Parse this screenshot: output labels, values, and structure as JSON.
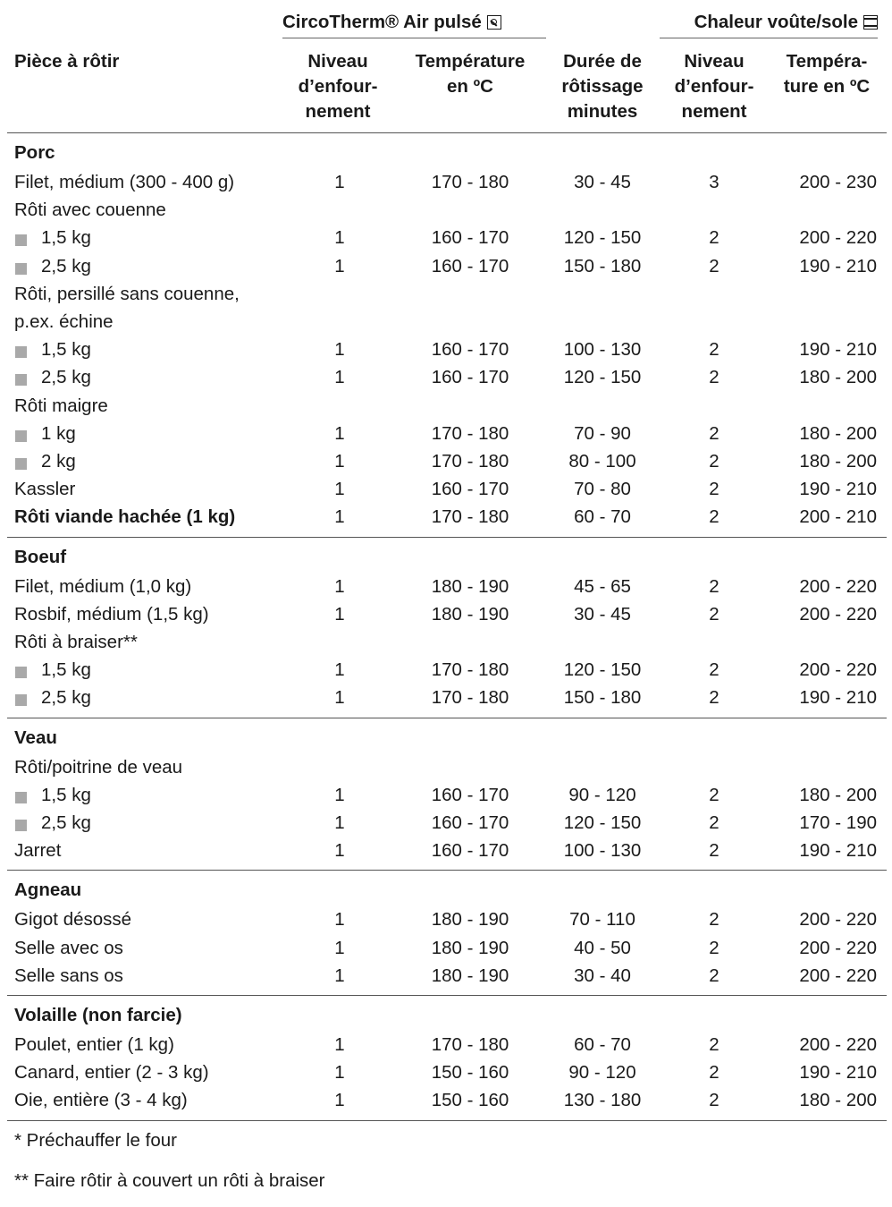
{
  "header": {
    "circotherm_label": "CircoTherm® Air pulsé",
    "circotherm_icon": "fan-symbol-icon",
    "voute_label": "Chaleur voûte/sole",
    "voute_icon": "top-bottom-heat-icon",
    "col_piece": "Pièce à rôtir",
    "col_niveau_ct": [
      "Niveau",
      "d’enfour-",
      "nement"
    ],
    "col_temp_ct": [
      "Température",
      "en ºC"
    ],
    "col_duree": [
      "Durée de",
      "rôtissage",
      "minutes"
    ],
    "col_niveau_hv": [
      "Niveau",
      "d’enfour-",
      "nement"
    ],
    "col_temp_hv": [
      "Tempéra-",
      "ture en ºC"
    ]
  },
  "sections": [
    {
      "title": "Porc",
      "rows": [
        {
          "label": "Filet, médium (300 - 400 g)",
          "v": [
            "1",
            "170 - 180",
            "30 - 45",
            "3",
            "200 - 230"
          ]
        },
        {
          "label": "Rôti avec couenne"
        },
        {
          "label": "1,5 kg",
          "bullet": true,
          "v": [
            "1",
            "160 - 170",
            "120 - 150",
            "2",
            "200 - 220"
          ]
        },
        {
          "label": "2,5 kg",
          "bullet": true,
          "v": [
            "1",
            "160 - 170",
            "150 - 180",
            "2",
            "190 - 210"
          ]
        },
        {
          "label": "Rôti, persillé sans couenne,"
        },
        {
          "label": "p.ex. échine"
        },
        {
          "label": "1,5 kg",
          "bullet": true,
          "v": [
            "1",
            "160 - 170",
            "100 - 130",
            "2",
            "190 - 210"
          ]
        },
        {
          "label": "2,5 kg",
          "bullet": true,
          "v": [
            "1",
            "160 - 170",
            "120 - 150",
            "2",
            "180 - 200"
          ]
        },
        {
          "label": "Rôti maigre"
        },
        {
          "label": "1 kg",
          "bullet": true,
          "v": [
            "1",
            "170 - 180",
            "70 - 90",
            "2",
            "180 - 200"
          ]
        },
        {
          "label": "2 kg",
          "bullet": true,
          "v": [
            "1",
            "170 - 180",
            "80 - 100",
            "2",
            "180 - 200"
          ]
        },
        {
          "label": "Kassler",
          "v": [
            "1",
            "160 - 170",
            "70 - 80",
            "2",
            "190 - 210"
          ]
        },
        {
          "label": "Rôti viande hachée (1 kg)",
          "bold": true,
          "v": [
            "1",
            "170 - 180",
            "60 - 70",
            "2",
            "200 - 210"
          ]
        }
      ]
    },
    {
      "title": "Boeuf",
      "rows": [
        {
          "label": "Filet, médium (1,0 kg)",
          "v": [
            "1",
            "180 - 190",
            "45 - 65",
            "2",
            "200 - 220"
          ]
        },
        {
          "label": "Rosbif, médium (1,5 kg)",
          "v": [
            "1",
            "180 - 190",
            "30 - 45",
            "2",
            "200 - 220"
          ]
        },
        {
          "label": "Rôti à braiser**"
        },
        {
          "label": "1,5 kg",
          "bullet": true,
          "v": [
            "1",
            "170 - 180",
            "120 - 150",
            "2",
            "200 - 220"
          ]
        },
        {
          "label": "2,5 kg",
          "bullet": true,
          "v": [
            "1",
            "170 - 180",
            "150 - 180",
            "2",
            "190 - 210"
          ]
        }
      ]
    },
    {
      "title": "Veau",
      "rows": [
        {
          "label": "Rôti/poitrine de veau"
        },
        {
          "label": "1,5 kg",
          "bullet": true,
          "v": [
            "1",
            "160 - 170",
            "90 - 120",
            "2",
            "180 - 200"
          ]
        },
        {
          "label": "2,5 kg",
          "bullet": true,
          "v": [
            "1",
            "160 - 170",
            "120 - 150",
            "2",
            "170 - 190"
          ]
        },
        {
          "label": "Jarret",
          "v": [
            "1",
            "160 - 170",
            "100 - 130",
            "2",
            "190 - 210"
          ]
        }
      ]
    },
    {
      "title": "Agneau",
      "rows": [
        {
          "label": "Gigot désossé",
          "v": [
            "1",
            "180 - 190",
            "70 - 110",
            "2",
            "200 - 220"
          ]
        },
        {
          "label": "Selle avec os",
          "v": [
            "1",
            "180 - 190",
            "40 - 50",
            "2",
            "200 - 220"
          ]
        },
        {
          "label": "Selle sans os",
          "v": [
            "1",
            "180 - 190",
            "30 - 40",
            "2",
            "200 - 220"
          ]
        }
      ]
    },
    {
      "title": "Volaille (non farcie)",
      "rows": [
        {
          "label": "Poulet, entier (1 kg)",
          "v": [
            "1",
            "170 - 180",
            "60 - 70",
            "2",
            "200 - 220"
          ]
        },
        {
          "label": "Canard, entier (2 - 3 kg)",
          "v": [
            "1",
            "150 - 160",
            "90 - 120",
            "2",
            "190 - 210"
          ]
        },
        {
          "label": "Oie, entière (3 - 4 kg)",
          "v": [
            "1",
            "150 - 160",
            "130 - 180",
            "2",
            "180 - 200"
          ]
        }
      ]
    }
  ],
  "notes": [
    "*   Préchauffer le four",
    "** Faire rôtir à couvert un rôti à braiser"
  ]
}
